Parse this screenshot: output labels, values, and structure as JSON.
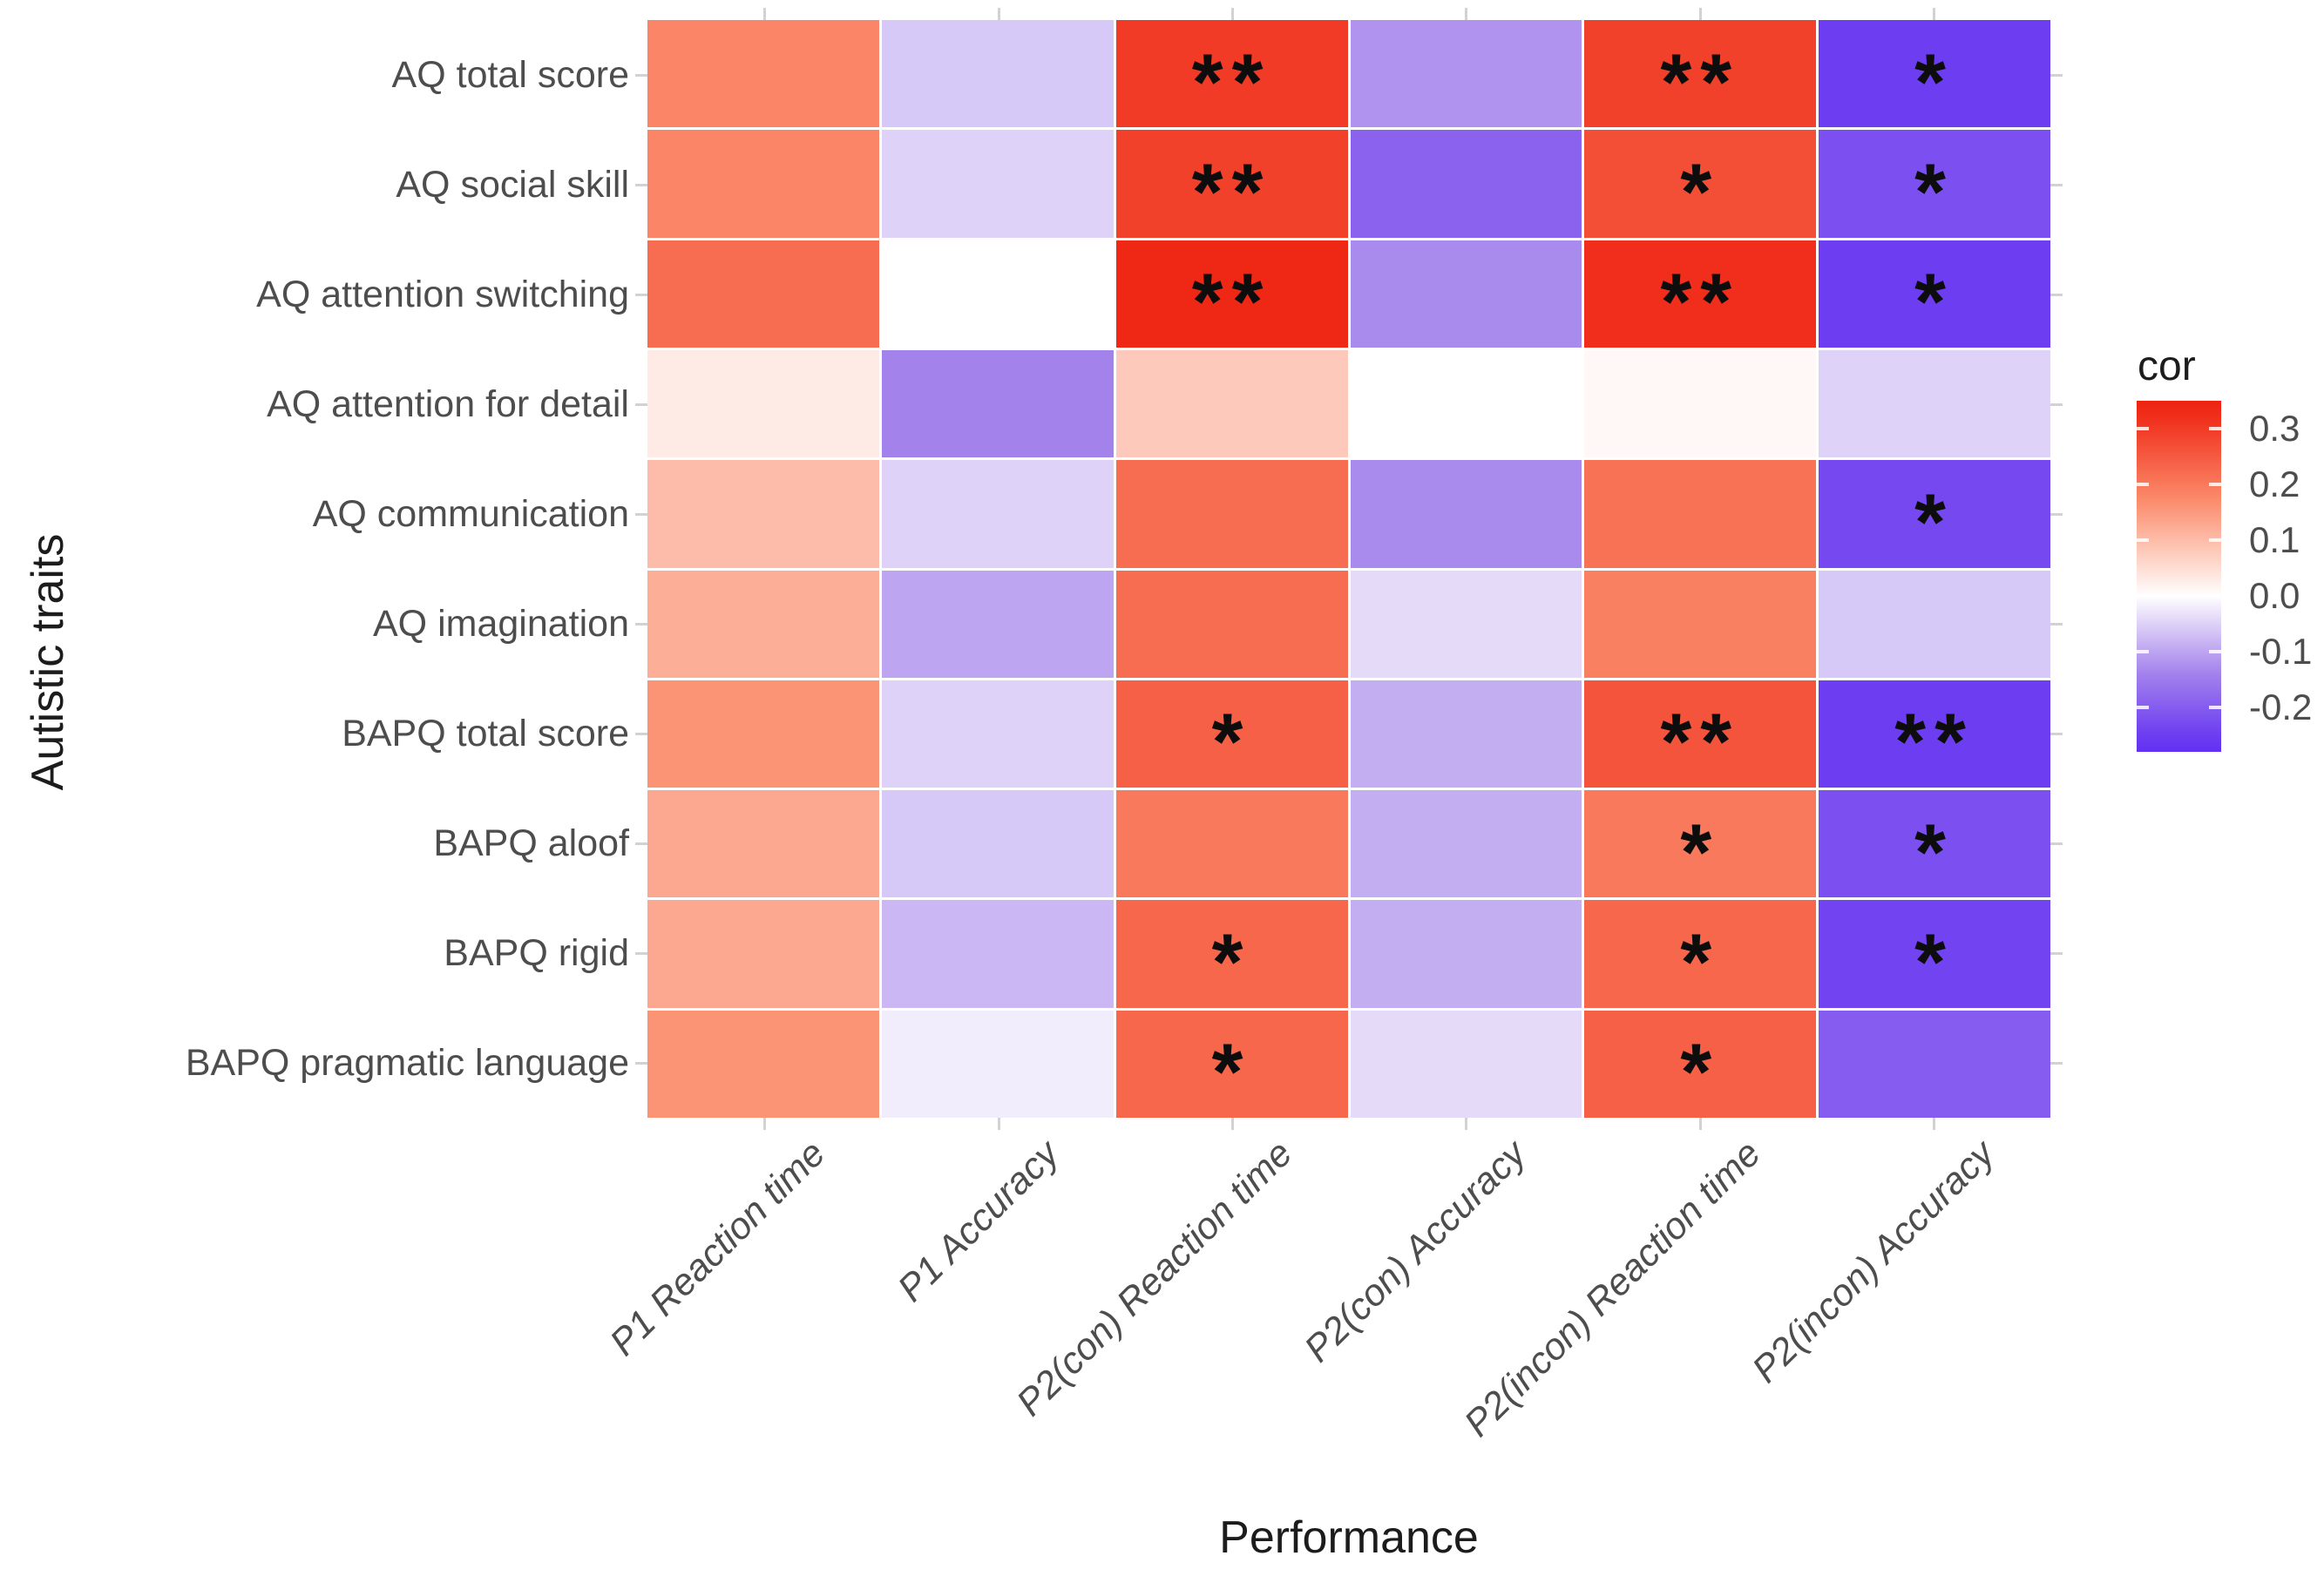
{
  "chart_data": {
    "type": "heatmap",
    "title": "",
    "xlabel": "Performance",
    "ylabel": "Autistic traits",
    "x_categories": [
      "P1 Reaction time",
      "P1 Accuracy",
      "P2(con) Reaction time",
      "P2(con) Accuracy",
      "P2(incon) Reaction time",
      "P2(incon) Accuracy"
    ],
    "y_categories": [
      "AQ total score",
      "AQ social skill",
      "AQ attention switching",
      "AQ attention for detail",
      "AQ communication",
      "AQ imagination",
      "BAPQ total score",
      "BAPQ aloof",
      "BAPQ rigid",
      "BAPQ pragmatic language"
    ],
    "values": [
      [
        0.18,
        -0.06,
        0.3,
        -0.12,
        0.29,
        -0.25
      ],
      [
        0.18,
        -0.05,
        0.29,
        -0.19,
        0.27,
        -0.22
      ],
      [
        0.22,
        0.0,
        0.33,
        -0.13,
        0.32,
        -0.25
      ],
      [
        0.03,
        -0.14,
        0.08,
        0.0,
        0.01,
        -0.05
      ],
      [
        0.1,
        -0.05,
        0.22,
        -0.13,
        0.21,
        -0.23
      ],
      [
        0.12,
        -0.1,
        0.22,
        -0.04,
        0.19,
        -0.06
      ],
      [
        0.16,
        -0.05,
        0.24,
        -0.09,
        0.26,
        -0.25
      ],
      [
        0.13,
        -0.06,
        0.2,
        -0.09,
        0.2,
        -0.22
      ],
      [
        0.13,
        -0.08,
        0.23,
        -0.09,
        0.23,
        -0.24
      ],
      [
        0.16,
        -0.02,
        0.23,
        -0.04,
        0.24,
        -0.2
      ]
    ],
    "significance": [
      [
        "",
        "",
        "**",
        "",
        "**",
        "*"
      ],
      [
        "",
        "",
        "**",
        "",
        "*",
        "*"
      ],
      [
        "",
        "",
        "**",
        "",
        "**",
        "*"
      ],
      [
        "",
        "",
        "",
        "",
        "",
        ""
      ],
      [
        "",
        "",
        "",
        "",
        "",
        "*"
      ],
      [
        "",
        "",
        "",
        "",
        "",
        ""
      ],
      [
        "",
        "",
        "*",
        "",
        "**",
        "**"
      ],
      [
        "",
        "",
        "",
        "",
        "*",
        "*"
      ],
      [
        "",
        "",
        "*",
        "",
        "*",
        "*"
      ],
      [
        "",
        "",
        "*",
        "",
        "*",
        ""
      ]
    ],
    "legend": {
      "title": "cor",
      "tick_labels": [
        "0.3",
        "0.2",
        "0.1",
        "0.0",
        "-0.1",
        "-0.2"
      ],
      "tick_values": [
        0.3,
        0.2,
        0.1,
        0.0,
        -0.1,
        -0.2
      ],
      "value_top": 0.35,
      "value_bottom": -0.28
    },
    "colors": {
      "high": "#EE2210",
      "mid_pos": "#FB8C6C",
      "zero": "#FFFFFF",
      "mid_neg": "#A685EC",
      "low": "#6230F2",
      "pos_max": 0.34,
      "neg_min": -0.27,
      "axis_text": "#4d4d4d",
      "title_text": "#1c1c1c",
      "tick_mark": "#d2d2d2",
      "star": "#0d0d0d"
    }
  }
}
